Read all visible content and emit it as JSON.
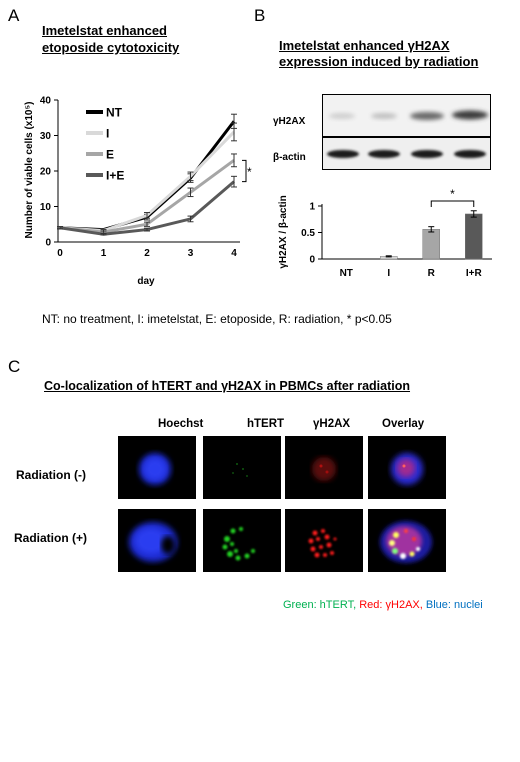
{
  "panelA": {
    "letter": "A",
    "title_line1": "Imetelstat enhanced",
    "title_line2": "etoposide cytotoxicity",
    "chart_data": {
      "type": "line",
      "x": [
        0,
        1,
        2,
        3,
        4
      ],
      "xlabel": "day",
      "ylabel": "Number of viable cells (x10⁵)",
      "ylim": [
        0,
        40
      ],
      "yticks": [
        0,
        10,
        20,
        30,
        40
      ],
      "series": [
        {
          "name": "NT",
          "values": [
            4,
            3.5,
            7,
            18,
            34
          ],
          "err": [
            0.3,
            0.3,
            0.8,
            1.2,
            2.0
          ],
          "color": "#000000"
        },
        {
          "name": "I",
          "values": [
            4,
            3.2,
            7.5,
            18.5,
            31
          ],
          "err": [
            0.3,
            0.3,
            0.8,
            1.2,
            2.5
          ],
          "color": "#d9d9d9"
        },
        {
          "name": "E",
          "values": [
            4,
            2.8,
            5,
            14,
            23
          ],
          "err": [
            0.3,
            0.3,
            0.6,
            1.2,
            1.8
          ],
          "color": "#a6a6a6"
        },
        {
          "name": "I+E",
          "values": [
            4,
            2.2,
            3.5,
            6.5,
            17
          ],
          "err": [
            0.3,
            0.2,
            0.4,
            0.8,
            1.5
          ],
          "color": "#595959"
        }
      ],
      "annotation": "*"
    }
  },
  "panelB": {
    "letter": "B",
    "title_line1": "Imetelstat enhanced γH2AX",
    "title_line2": "expression induced by radiation",
    "blot_labels": [
      "γH2AX",
      "β-actin"
    ],
    "chart_data": {
      "type": "bar",
      "categories": [
        "NT",
        "I",
        "R",
        "I+R"
      ],
      "values": [
        0,
        0.05,
        0.56,
        0.85
      ],
      "err": [
        0,
        0.01,
        0.05,
        0.06
      ],
      "colors": [
        "#ffffff",
        "#d9d9d9",
        "#a6a6a6",
        "#595959"
      ],
      "ylabel": "γH2AX / β-actin",
      "ylim": [
        0,
        1
      ],
      "yticks": [
        "0",
        "0.5",
        "1"
      ],
      "annotation": "*"
    }
  },
  "footnote": "NT: no treatment, I: imetelstat, E: etoposide, R: radiation, * p<0.05",
  "panelC": {
    "letter": "C",
    "title": "Co-localization  of hTERT and γH2AX in PBMCs after radiation",
    "columns": [
      "Hoechst",
      "hTERT",
      "γH2AX",
      "Overlay"
    ],
    "rows": [
      "Radiation (-)",
      "Radiation (+)"
    ],
    "legend": [
      {
        "text": "Green: hTERT,",
        "color": "#00b050"
      },
      {
        "text": " Red: γH2AX,",
        "color": "#ff0000"
      },
      {
        "text": " Blue: nuclei",
        "color": "#0070c0"
      }
    ]
  }
}
